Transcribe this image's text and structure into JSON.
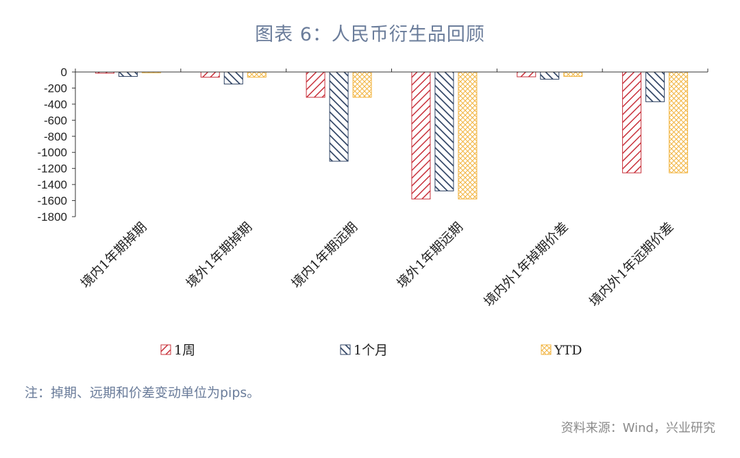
{
  "title": "图表 6：人民币衍生品回顾",
  "note": "注：掉期、远期和价差变动单位为pips。",
  "source": "资料来源：Wind，兴业研究",
  "colors": {
    "s1": "#c8303a",
    "s2": "#2e4263",
    "s3": "#f2b33d"
  },
  "chart_data": {
    "type": "bar",
    "categories": [
      "境内1年期掉期",
      "境外1年期掉期",
      "境内1年期远期",
      "境外1年期远期",
      "境内外1年掉期价差",
      "境内外1年远期价差"
    ],
    "series": [
      {
        "name": "1周",
        "values": [
          -15,
          -65,
          -315,
          -1580,
          -60,
          -1255
        ]
      },
      {
        "name": "1个月",
        "values": [
          -55,
          -150,
          -1110,
          -1480,
          -90,
          -370
        ]
      },
      {
        "name": "YTD",
        "values": [
          -10,
          -65,
          -315,
          -1580,
          -55,
          -1255
        ]
      }
    ],
    "ylim": [
      -1800,
      0
    ],
    "yticks": [
      0,
      -200,
      -400,
      -600,
      -800,
      -1000,
      -1200,
      -1400,
      -1600,
      -1800
    ],
    "grid": false,
    "legend": "bottom"
  }
}
